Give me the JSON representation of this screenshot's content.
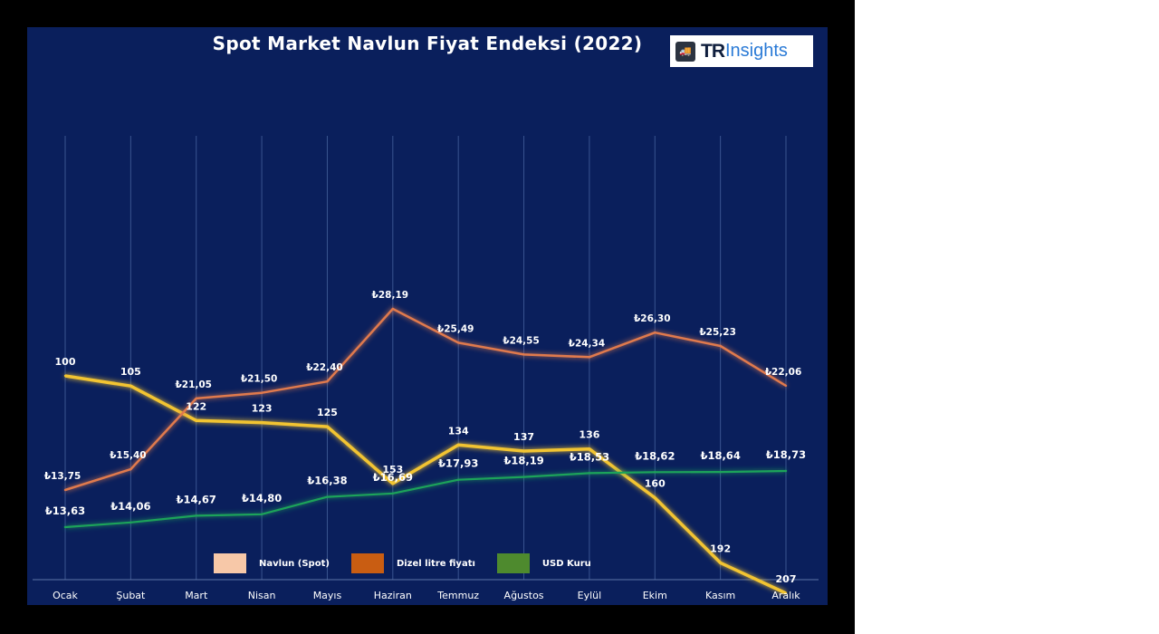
{
  "title": "Spot Market Navlun Fiyat Endeksi (2022)",
  "logo": {
    "text_bold": "TR",
    "text_light": "Insights",
    "icon": "truck-icon"
  },
  "legend": [
    {
      "label": "Navlun (Spot)",
      "color": "#f7c8a8"
    },
    {
      "label": "Dizel  litre fiyatı",
      "color": "#c95d12"
    },
    {
      "label": "USD Kuru",
      "color": "#4e8a2e"
    }
  ],
  "chart_data": {
    "type": "line",
    "categories": [
      "Ocak",
      "Şubat",
      "Mart",
      "Nisan",
      "Mayıs",
      "Haziran",
      "Temmuz",
      "Ağustos",
      "Eylül",
      "Ekim",
      "Kasım",
      "Aralık"
    ],
    "series": [
      {
        "name": "Navlun (Spot)",
        "color": "#f2c430",
        "values": [
          100,
          105,
          122,
          123,
          125,
          153,
          134,
          137,
          136,
          160,
          192,
          207
        ],
        "labels": [
          "100",
          "105",
          "122",
          "123",
          "125",
          "153",
          "134",
          "137",
          "136",
          "160",
          "192",
          "207"
        ]
      },
      {
        "name": "Dizel  litre fiyatı",
        "color": "#e07a4e",
        "values": [
          13.75,
          15.4,
          21.05,
          21.5,
          22.4,
          28.19,
          25.49,
          24.55,
          24.34,
          26.3,
          25.23,
          22.06
        ],
        "labels": [
          "₺13,75",
          "₺15,40",
          "₺21,05",
          "₺21,50",
          "₺22,40",
          "₺28,19",
          "₺25,49",
          "₺24,55",
          "₺24,34",
          "₺26,30",
          "₺25,23",
          "₺22,06"
        ]
      },
      {
        "name": "USD Kuru",
        "color": "#1fa35a",
        "values": [
          13.63,
          14.06,
          14.67,
          14.8,
          16.38,
          16.69,
          17.93,
          18.19,
          18.53,
          18.62,
          18.64,
          18.73
        ],
        "labels": [
          "₺13,63",
          "₺14,06",
          "₺14,67",
          "₺14,80",
          "₺16,38",
          "₺16,69",
          "₺17,93",
          "₺18,19",
          "₺18,53",
          "₺18,62",
          "₺18,64",
          "₺18,73"
        ]
      }
    ],
    "grid": {
      "vertical": true,
      "horizontal": false
    },
    "legend_position": "bottom"
  }
}
